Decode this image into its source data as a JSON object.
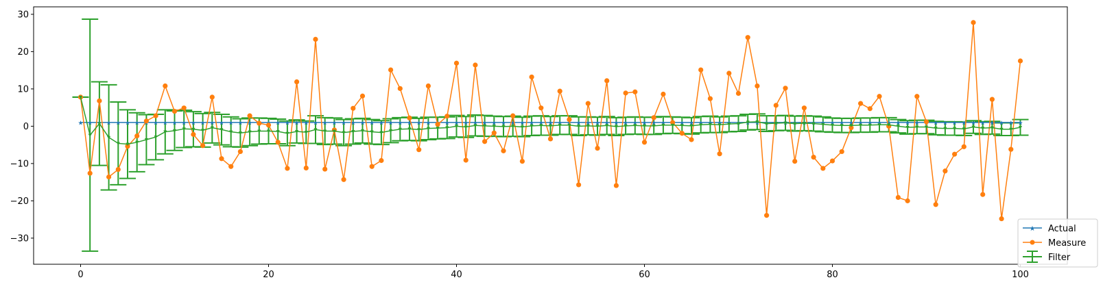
{
  "chart_data": {
    "type": "line",
    "title": "",
    "xlabel": "",
    "ylabel": "",
    "xlim": [
      -5,
      105
    ],
    "ylim": [
      -37,
      32
    ],
    "xticks": [
      0,
      20,
      40,
      60,
      80,
      100
    ],
    "yticks": [
      -30,
      -20,
      -10,
      0,
      10,
      20,
      30
    ],
    "grid": false,
    "legend_position": "bottom-right",
    "colors": {
      "actual": "#1f77b4",
      "measure": "#ff7f0e",
      "filter": "#2ca02c"
    },
    "series": [
      {
        "name": "Actual",
        "marker": "star",
        "x": [
          0,
          1,
          2,
          3,
          4,
          5,
          6,
          7,
          8,
          9,
          10,
          11,
          12,
          13,
          14,
          15,
          16,
          17,
          18,
          19,
          20,
          21,
          22,
          23,
          24,
          25,
          26,
          27,
          28,
          29,
          30,
          31,
          32,
          33,
          34,
          35,
          36,
          37,
          38,
          39,
          40,
          41,
          42,
          43,
          44,
          45,
          46,
          47,
          48,
          49,
          50,
          51,
          52,
          53,
          54,
          55,
          56,
          57,
          58,
          59,
          60,
          61,
          62,
          63,
          64,
          65,
          66,
          67,
          68,
          69,
          70,
          71,
          72,
          73,
          74,
          75,
          76,
          77,
          78,
          79,
          80,
          81,
          82,
          83,
          84,
          85,
          86,
          87,
          88,
          89,
          90,
          91,
          92,
          93,
          94,
          95,
          96,
          97,
          98,
          99,
          100
        ],
        "values": [
          1,
          1,
          1,
          1,
          1,
          1,
          1,
          1,
          1,
          1,
          1,
          1,
          1,
          1,
          1,
          1,
          1,
          1,
          1,
          1,
          1,
          1,
          1,
          1,
          1,
          1,
          1,
          1,
          1,
          1,
          1,
          1,
          1,
          1,
          1,
          1,
          1,
          1,
          1,
          1,
          1,
          1,
          1,
          1,
          1,
          1,
          1,
          1,
          1,
          1,
          1,
          1,
          1,
          1,
          1,
          1,
          1,
          1,
          1,
          1,
          1,
          1,
          1,
          1,
          1,
          1,
          1,
          1,
          1,
          1,
          1,
          1,
          1,
          1,
          1,
          1,
          1,
          1,
          1,
          1,
          1,
          1,
          1,
          1,
          1,
          1,
          1,
          1,
          1,
          1,
          1,
          1,
          1,
          1,
          1,
          1,
          1,
          1,
          1,
          1,
          1
        ]
      },
      {
        "name": "Measure",
        "marker": "circle",
        "x": [
          0,
          1,
          2,
          3,
          4,
          5,
          6,
          7,
          8,
          9,
          10,
          11,
          12,
          13,
          14,
          15,
          16,
          17,
          18,
          19,
          20,
          21,
          22,
          23,
          24,
          25,
          26,
          27,
          28,
          29,
          30,
          31,
          32,
          33,
          34,
          35,
          36,
          37,
          38,
          39,
          40,
          41,
          42,
          43,
          44,
          45,
          46,
          47,
          48,
          49,
          50,
          51,
          52,
          53,
          54,
          55,
          56,
          57,
          58,
          59,
          60,
          61,
          62,
          63,
          64,
          65,
          66,
          67,
          68,
          69,
          70,
          71,
          72,
          73,
          74,
          75,
          76,
          77,
          78,
          79,
          80,
          81,
          82,
          83,
          84,
          85,
          86,
          87,
          88,
          89,
          90,
          91,
          92,
          93,
          94,
          95,
          96,
          97,
          98,
          99,
          100
        ],
        "values": [
          7.8,
          -12.6,
          6.8,
          -13.6,
          -11.6,
          -5.4,
          -2.6,
          1.4,
          2.8,
          10.8,
          4.0,
          4.9,
          -2.2,
          -5.2,
          7.8,
          -8.7,
          -10.8,
          -6.8,
          2.8,
          0.8,
          0.3,
          -4.3,
          -11.3,
          11.9,
          -11.2,
          23.3,
          -11.5,
          -1.0,
          -14.3,
          4.8,
          8.1,
          -10.8,
          -9.2,
          15.1,
          10.1,
          2.2,
          -6.3,
          10.8,
          0.5,
          2.7,
          16.9,
          -9.1,
          16.4,
          -4.1,
          -1.8,
          -6.6,
          2.8,
          -9.4,
          13.2,
          4.9,
          -3.4,
          9.4,
          1.8,
          -15.7,
          6.1,
          -5.9,
          12.2,
          -15.9,
          8.9,
          9.2,
          -4.3,
          2.3,
          8.6,
          1.0,
          -1.9,
          -3.6,
          15.1,
          7.4,
          -7.4,
          14.2,
          8.8,
          23.8,
          10.8,
          -23.9,
          5.6,
          10.2,
          -9.4,
          4.9,
          -8.3,
          -11.3,
          -9.3,
          -6.8,
          -0.4,
          6.1,
          4.7,
          8.0,
          0.0,
          -19.1,
          -20.0,
          8.0,
          1.2,
          -21.0,
          -12.0,
          -7.5,
          -5.5,
          27.8,
          -18.3,
          7.2,
          -24.8,
          -6.2,
          17.5
        ]
      },
      {
        "name": "Filter",
        "marker": "triangle",
        "x": [
          0,
          1,
          2,
          3,
          4,
          5,
          6,
          7,
          8,
          9,
          10,
          11,
          12,
          13,
          14,
          15,
          16,
          17,
          18,
          19,
          20,
          21,
          22,
          23,
          24,
          25,
          26,
          27,
          28,
          29,
          30,
          31,
          32,
          33,
          34,
          35,
          36,
          37,
          38,
          39,
          40,
          41,
          42,
          43,
          44,
          45,
          46,
          47,
          48,
          49,
          50,
          51,
          52,
          53,
          54,
          55,
          56,
          57,
          58,
          59,
          60,
          61,
          62,
          63,
          64,
          65,
          66,
          67,
          68,
          69,
          70,
          71,
          72,
          73,
          74,
          75,
          76,
          77,
          78,
          79,
          80,
          81,
          82,
          83,
          84,
          85,
          86,
          87,
          88,
          89,
          90,
          91,
          92,
          93,
          94,
          95,
          96,
          97,
          98,
          99,
          100
        ],
        "values": [
          7.8,
          -2.4,
          0.7,
          -3.0,
          -4.6,
          -4.8,
          -4.3,
          -3.6,
          -2.9,
          -1.5,
          -1.2,
          -0.7,
          -0.8,
          -1.1,
          -0.4,
          -0.9,
          -1.5,
          -1.8,
          -1.5,
          -1.3,
          -1.3,
          -1.4,
          -1.9,
          -1.4,
          -1.6,
          -0.9,
          -1.3,
          -1.3,
          -1.7,
          -1.4,
          -1.2,
          -1.5,
          -1.7,
          -1.2,
          -0.8,
          -0.7,
          -0.9,
          -0.6,
          -0.5,
          -0.4,
          0.0,
          -0.2,
          0.2,
          0.1,
          0.0,
          -0.1,
          0.0,
          -0.2,
          0.1,
          0.2,
          0.1,
          0.3,
          0.3,
          0.0,
          0.1,
          0.0,
          0.2,
          -0.1,
          0.1,
          0.2,
          0.1,
          0.1,
          0.3,
          0.3,
          0.2,
          0.1,
          0.4,
          0.5,
          0.4,
          0.6,
          0.7,
          1.1,
          1.2,
          0.7,
          0.8,
          0.9,
          0.7,
          0.8,
          0.7,
          0.5,
          0.3,
          0.2,
          0.2,
          0.3,
          0.3,
          0.4,
          0.4,
          0.0,
          -0.3,
          -0.2,
          -0.2,
          -0.5,
          -0.6,
          -0.6,
          -0.7,
          -0.2,
          -0.5,
          -0.4,
          -0.8,
          -0.8,
          -0.3
        ],
        "error_halfwidth": [
          0,
          31.1,
          11.2,
          14.1,
          11.1,
          9.2,
          7.9,
          6.7,
          6.1,
          5.9,
          5.3,
          5.0,
          4.7,
          4.5,
          4.1,
          4.1,
          4.0,
          3.8,
          3.7,
          3.5,
          3.4,
          3.3,
          3.3,
          3.1,
          3.0,
          3.7,
          3.6,
          3.5,
          3.5,
          3.4,
          3.3,
          3.3,
          3.2,
          3.2,
          3.1,
          3.1,
          3.0,
          3.0,
          2.9,
          2.9,
          2.9,
          2.8,
          2.8,
          2.8,
          2.7,
          2.7,
          2.7,
          2.6,
          2.6,
          2.6,
          2.5,
          2.5,
          2.5,
          2.5,
          2.4,
          2.4,
          2.4,
          2.4,
          2.3,
          2.3,
          2.3,
          2.3,
          2.3,
          2.2,
          2.2,
          2.2,
          2.2,
          2.2,
          2.1,
          2.1,
          2.1,
          2.1,
          2.1,
          2.1,
          2.0,
          2.0,
          2.0,
          2.0,
          2.0,
          2.0,
          1.9,
          1.9,
          1.9,
          1.9,
          1.9,
          1.9,
          1.9,
          1.8,
          1.8,
          1.8,
          1.8,
          1.8,
          1.8,
          1.8,
          1.8,
          1.7,
          1.7,
          1.7,
          1.7,
          1.7,
          2.1
        ]
      }
    ]
  }
}
